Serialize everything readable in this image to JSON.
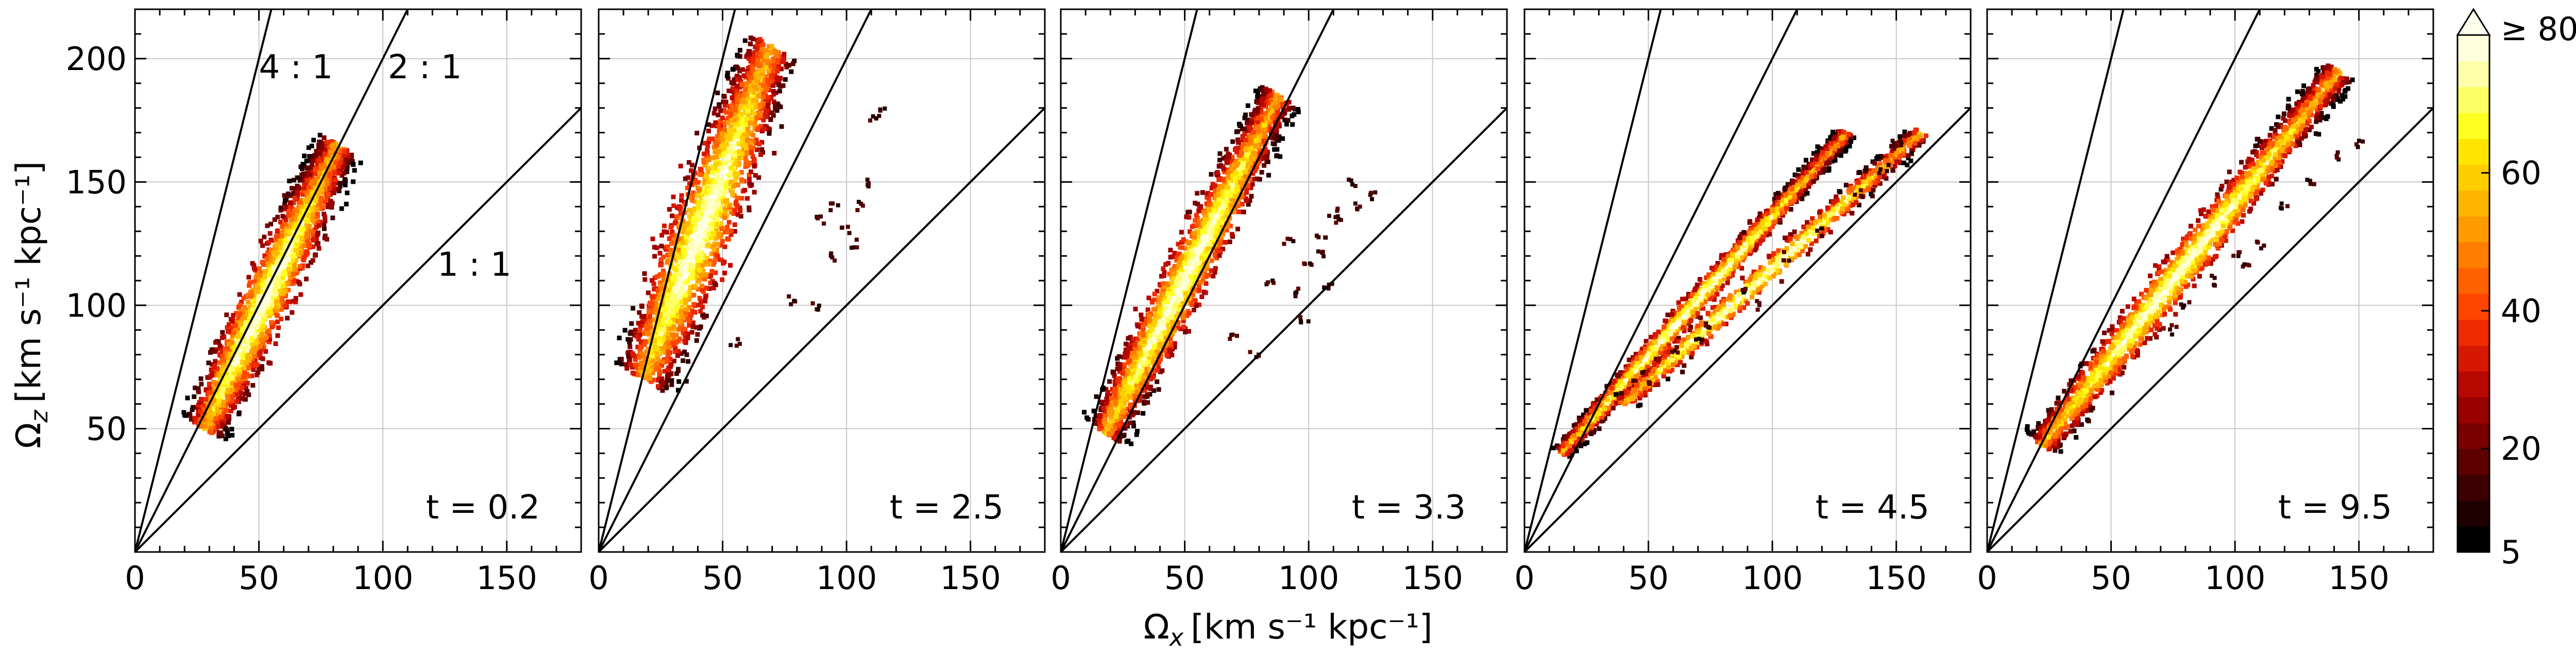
{
  "chart_data": {
    "type": "heatmap",
    "xlabel": "Ω",
    "xlabel_sub": "x",
    "xlabel_unit": "[km s⁻¹ kpc⁻¹]",
    "ylabel": "Ω",
    "ylabel_sub": "z",
    "ylabel_unit": "[km s⁻¹ kpc⁻¹]",
    "xlim": [
      0,
      180
    ],
    "ylim": [
      0,
      220
    ],
    "xticks": [
      0,
      50,
      100,
      150
    ],
    "xtick_labels": [
      "0",
      "50",
      "100",
      "150"
    ],
    "yticks": [
      50,
      100,
      150,
      200
    ],
    "ytick_labels": [
      "50",
      "100",
      "150",
      "200"
    ],
    "grid": true,
    "resonance_lines": [
      {
        "slope": 4,
        "label": "4 : 1"
      },
      {
        "slope": 2,
        "label": "2 : 1"
      },
      {
        "slope": 1,
        "label": "1 : 1"
      }
    ],
    "panels": [
      {
        "time_label": "t = 0.2",
        "blob": {
          "x0": 28,
          "y0": 50,
          "x1": 82,
          "y1": 165,
          "width": 12
        },
        "scatter": []
      },
      {
        "time_label": "t = 2.5",
        "blob": {
          "x0": 18,
          "y0": 70,
          "x1": 70,
          "y1": 205,
          "width": 16
        },
        "scatter": [
          [
            90,
            135
          ],
          [
            95,
            140
          ],
          [
            100,
            130
          ],
          [
            103,
            125
          ],
          [
            105,
            140
          ],
          [
            110,
            175
          ],
          [
            115,
            178
          ],
          [
            88,
            100
          ],
          [
            78,
            102
          ],
          [
            55,
            85
          ],
          [
            95,
            120
          ],
          [
            108,
            150
          ]
        ]
      },
      {
        "time_label": "t = 3.3",
        "blob": {
          "x0": 18,
          "y0": 48,
          "x1": 88,
          "y1": 185,
          "width": 11
        },
        "scatter": [
          [
            95,
            105
          ],
          [
            100,
            115
          ],
          [
            105,
            128
          ],
          [
            110,
            138
          ],
          [
            118,
            150
          ],
          [
            125,
            145
          ],
          [
            85,
            110
          ],
          [
            92,
            125
          ],
          [
            98,
            95
          ],
          [
            105,
            120
          ],
          [
            112,
            135
          ],
          [
            78,
            80
          ],
          [
            70,
            88
          ],
          [
            120,
            140
          ],
          [
            108,
            108
          ]
        ]
      },
      {
        "time_label": "t = 4.5",
        "blob": {
          "x0": 15,
          "y0": 40,
          "x1": 130,
          "y1": 170,
          "width": 5
        },
        "second_band": {
          "x0": 40,
          "y0": 60,
          "x1": 160,
          "y1": 170,
          "width": 6
        },
        "scatter": [
          [
            50,
            70
          ],
          [
            60,
            82
          ],
          [
            75,
            92
          ],
          [
            90,
            105
          ],
          [
            105,
            120
          ],
          [
            120,
            130
          ],
          [
            135,
            145
          ],
          [
            145,
            155
          ],
          [
            150,
            165
          ],
          [
            95,
            100
          ],
          [
            70,
            85
          ]
        ]
      },
      {
        "time_label": "t = 9.5",
        "blob": {
          "x0": 22,
          "y0": 43,
          "x1": 142,
          "y1": 195,
          "width": 9
        },
        "scatter": [
          [
            80,
            100
          ],
          [
            90,
            110
          ],
          [
            100,
            120
          ],
          [
            110,
            125
          ],
          [
            120,
            140
          ],
          [
            130,
            150
          ],
          [
            140,
            160
          ],
          [
            150,
            165
          ],
          [
            75,
            90
          ],
          [
            105,
            115
          ]
        ]
      }
    ],
    "colorbar": {
      "min": 5,
      "max": 80,
      "ticks": [
        5,
        20,
        40,
        60
      ],
      "tick_labels": [
        "5",
        "20",
        "40",
        "60"
      ],
      "extend_label": "≥ 80",
      "colors": [
        "#000000",
        "#1f0000",
        "#3d0000",
        "#5c0000",
        "#7a0000",
        "#990000",
        "#b80600",
        "#d61800",
        "#f02a00",
        "#ff4500",
        "#ff6100",
        "#ff7d00",
        "#ff9a00",
        "#ffb400",
        "#ffcd00",
        "#ffe600",
        "#ffff22",
        "#ffff66",
        "#ffffaa",
        "#ffffdd"
      ]
    }
  }
}
